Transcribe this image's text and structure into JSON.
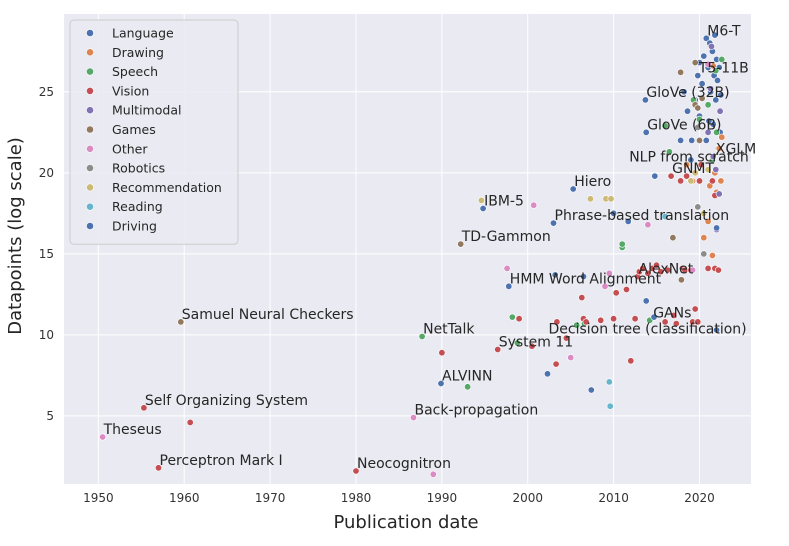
{
  "chart_data": {
    "type": "scatter",
    "xlabel": "Publication date",
    "ylabel": "Datapoints (log scale)",
    "xlim": [
      1946,
      2026
    ],
    "ylim": [
      0.8,
      29.8
    ],
    "x_ticks": [
      1950,
      1960,
      1970,
      1980,
      1990,
      2000,
      2010,
      2020
    ],
    "y_ticks": [
      5,
      10,
      15,
      20,
      25
    ],
    "grid": true,
    "background": "#eaeaf2",
    "legend_position": "top-left",
    "series": [
      {
        "name": "Language",
        "color": "#4c72b0",
        "points": [
          [
            1994.8,
            17.8
          ],
          [
            1997.8,
            13.0
          ],
          [
            2003.0,
            16.9
          ],
          [
            2003.2,
            13.7
          ],
          [
            2005.3,
            19.0
          ],
          [
            2006.5,
            13.6
          ],
          [
            2010.0,
            17.5
          ],
          [
            2011.7,
            17.0
          ],
          [
            2013.7,
            24.5
          ],
          [
            2013.8,
            22.5
          ],
          [
            2014.8,
            19.8
          ],
          [
            2015.8,
            17.3
          ],
          [
            2017.8,
            22.0
          ],
          [
            2018.2,
            25.0
          ],
          [
            2018.6,
            23.8
          ],
          [
            2019.0,
            20.8
          ],
          [
            2019.1,
            22.0
          ],
          [
            2019.5,
            24.5
          ],
          [
            2019.8,
            26.0
          ],
          [
            2020.0,
            23.5
          ],
          [
            2020.3,
            25.5
          ],
          [
            2020.5,
            27.2
          ],
          [
            2020.8,
            28.3
          ],
          [
            2021.0,
            26.5
          ],
          [
            2021.2,
            28.0
          ],
          [
            2021.3,
            25.0
          ],
          [
            2021.5,
            27.5
          ],
          [
            2021.6,
            23.0
          ],
          [
            2021.7,
            26.0
          ],
          [
            2021.8,
            28.5
          ],
          [
            2021.9,
            24.5
          ],
          [
            2022.0,
            27.0
          ],
          [
            2022.1,
            25.7
          ],
          [
            2022.2,
            21.5
          ],
          [
            2022.3,
            26.5
          ],
          [
            2022.4,
            22.5
          ],
          [
            2022.5,
            24.8
          ],
          [
            2020.8,
            22.0
          ],
          [
            2021.1,
            23.2
          ],
          [
            2020.0,
            26.8
          ]
        ]
      },
      {
        "name": "Drawing",
        "color": "#dd8452",
        "points": [
          [
            2018.5,
            20.5
          ],
          [
            2019.2,
            19.5
          ],
          [
            2020.5,
            16.0
          ],
          [
            2021.0,
            17.0
          ],
          [
            2021.2,
            19.2
          ],
          [
            2021.5,
            14.9
          ],
          [
            2021.8,
            20.0
          ],
          [
            2022.0,
            18.8
          ],
          [
            2022.3,
            21.5
          ],
          [
            2022.5,
            19.5
          ],
          [
            2022.6,
            22.2
          ],
          [
            2021.6,
            26.6
          ]
        ]
      },
      {
        "name": "Speech",
        "color": "#55a868",
        "points": [
          [
            1987.7,
            9.9
          ],
          [
            1993.0,
            6.8
          ],
          [
            1998.2,
            11.1
          ],
          [
            1998.8,
            9.5
          ],
          [
            2005.7,
            10.6
          ],
          [
            2006.6,
            10.7
          ],
          [
            2011.0,
            15.4
          ],
          [
            2011.0,
            15.6
          ],
          [
            2014.2,
            10.9
          ],
          [
            2016.0,
            22.9
          ],
          [
            2016.5,
            21.3
          ],
          [
            2019.3,
            24.5
          ],
          [
            2020.0,
            23.3
          ],
          [
            2021.0,
            24.2
          ],
          [
            2021.5,
            20.8
          ],
          [
            2022.0,
            22.5
          ],
          [
            2022.6,
            27.0
          ],
          [
            2021.9,
            26.3
          ]
        ]
      },
      {
        "name": "Vision",
        "color": "#c44e52",
        "points": [
          [
            1955.3,
            5.5
          ],
          [
            1957.0,
            1.8
          ],
          [
            1960.7,
            4.6
          ],
          [
            1980.0,
            1.6
          ],
          [
            1990.0,
            8.9
          ],
          [
            1996.5,
            9.1
          ],
          [
            1999.0,
            11.0
          ],
          [
            2000.5,
            9.3
          ],
          [
            2003.4,
            10.8
          ],
          [
            2003.3,
            8.2
          ],
          [
            2004.5,
            9.8
          ],
          [
            2006.3,
            12.3
          ],
          [
            2006.5,
            11.0
          ],
          [
            2006.8,
            10.8
          ],
          [
            2008.5,
            10.9
          ],
          [
            2010.0,
            11.0
          ],
          [
            2010.3,
            12.6
          ],
          [
            2011.5,
            12.8
          ],
          [
            2012.0,
            8.4
          ],
          [
            2012.5,
            11.0
          ],
          [
            2012.8,
            13.6
          ],
          [
            2013.0,
            13.9
          ],
          [
            2013.4,
            14.1
          ],
          [
            2014.0,
            13.8
          ],
          [
            2014.5,
            14.1
          ],
          [
            2015.0,
            14.3
          ],
          [
            2015.5,
            13.9
          ],
          [
            2016.0,
            10.8
          ],
          [
            2016.3,
            14.0
          ],
          [
            2016.7,
            19.8
          ],
          [
            2017.0,
            11.2
          ],
          [
            2017.3,
            10.7
          ],
          [
            2017.8,
            19.5
          ],
          [
            2018.0,
            14.1
          ],
          [
            2018.3,
            14.0
          ],
          [
            2018.5,
            19.8
          ],
          [
            2019.0,
            14.0
          ],
          [
            2019.2,
            10.8
          ],
          [
            2019.5,
            11.6
          ],
          [
            2019.8,
            10.8
          ],
          [
            2020.0,
            19.5
          ],
          [
            2020.2,
            20.5
          ],
          [
            2021.0,
            14.1
          ],
          [
            2021.5,
            19.5
          ],
          [
            2021.8,
            14.1
          ],
          [
            2022.2,
            14.0
          ],
          [
            2021.8,
            18.6
          ]
        ]
      },
      {
        "name": "Multimodal",
        "color": "#8172b3",
        "points": [
          [
            2021.0,
            22.5
          ],
          [
            2021.3,
            25.2
          ],
          [
            2021.6,
            21.0
          ],
          [
            2022.0,
            16.5
          ],
          [
            2022.3,
            18.7
          ],
          [
            2022.4,
            23.8
          ],
          [
            2021.9,
            20.2
          ],
          [
            2021.4,
            27.8
          ]
        ]
      },
      {
        "name": "Games",
        "color": "#937860",
        "points": [
          [
            1959.6,
            10.8
          ],
          [
            1992.2,
            15.6
          ],
          [
            2016.9,
            16.0
          ],
          [
            2017.9,
            13.4
          ],
          [
            2017.8,
            26.2
          ],
          [
            2019.5,
            24.2
          ],
          [
            2020.0,
            22.0
          ],
          [
            2019.5,
            26.8
          ],
          [
            2020.3,
            24.6
          ],
          [
            2019.8,
            24.0
          ]
        ]
      },
      {
        "name": "Other",
        "color": "#da8bc3",
        "points": [
          [
            1950.5,
            3.7
          ],
          [
            1986.7,
            4.9
          ],
          [
            1989.0,
            1.4
          ],
          [
            1997.6,
            14.1
          ],
          [
            2000.7,
            18.0
          ],
          [
            2005.0,
            8.6
          ],
          [
            2009.0,
            13.0
          ],
          [
            2009.5,
            13.8
          ],
          [
            2014.0,
            16.8
          ],
          [
            2019.2,
            14.0
          ],
          [
            2021.0,
            26.7
          ]
        ]
      },
      {
        "name": "Robotics",
        "color": "#8c8c8c",
        "points": [
          [
            2019.8,
            17.9
          ],
          [
            2020.5,
            15.0
          ],
          [
            2019.8,
            22.8
          ]
        ]
      },
      {
        "name": "Recommendation",
        "color": "#ccb974",
        "points": [
          [
            1994.6,
            18.3
          ],
          [
            2007.3,
            18.4
          ],
          [
            2009.1,
            18.4
          ],
          [
            2009.7,
            18.4
          ],
          [
            2019.0,
            19.5
          ],
          [
            2020.5,
            17.5
          ],
          [
            2021.0,
            20.2
          ],
          [
            2019.5,
            20.0
          ]
        ]
      },
      {
        "name": "Reading",
        "color": "#64b5cd",
        "points": [
          [
            2009.5,
            7.1
          ],
          [
            2009.6,
            5.6
          ],
          [
            2016.0,
            17.3
          ]
        ]
      },
      {
        "name": "Driving",
        "color": "#4c72b0",
        "points": [
          [
            1989.9,
            7.0
          ],
          [
            2002.3,
            7.6
          ],
          [
            2007.4,
            6.6
          ],
          [
            2013.8,
            12.1
          ],
          [
            2014.7,
            11.1
          ],
          [
            2022.0,
            10.3
          ],
          [
            2022.0,
            16.6
          ]
        ]
      }
    ],
    "annotations": [
      {
        "text": "Theseus",
        "x": 1950.5,
        "y": 3.7
      },
      {
        "text": "Self Organizing System",
        "x": 1955.3,
        "y": 5.5
      },
      {
        "text": "Perceptron Mark I",
        "x": 1957.0,
        "y": 1.8
      },
      {
        "text": "Samuel Neural Checkers",
        "x": 1959.6,
        "y": 10.8
      },
      {
        "text": "Neocognitron",
        "x": 1980.0,
        "y": 1.6
      },
      {
        "text": "Back-propagation",
        "x": 1986.7,
        "y": 4.9
      },
      {
        "text": "NetTalk",
        "x": 1987.7,
        "y": 9.9
      },
      {
        "text": "ALVINN",
        "x": 1989.9,
        "y": 7.0
      },
      {
        "text": "TD-Gammon",
        "x": 1992.2,
        "y": 15.6
      },
      {
        "text": "IBM-5",
        "x": 1994.8,
        "y": 17.8
      },
      {
        "text": "System 11",
        "x": 1996.5,
        "y": 9.1
      },
      {
        "text": "HMM Word Alignment",
        "x": 1997.8,
        "y": 13.0
      },
      {
        "text": "Decision tree (classification)",
        "x": 2002.3,
        "y": 9.9
      },
      {
        "text": "Phrase-based translation",
        "x": 2003.0,
        "y": 16.9
      },
      {
        "text": "Hiero",
        "x": 2005.3,
        "y": 19.0
      },
      {
        "text": "AlexNet",
        "x": 2012.8,
        "y": 13.6
      },
      {
        "text": "GANs",
        "x": 2014.5,
        "y": 10.9
      },
      {
        "text": "NLP from scratch",
        "x": 2011.7,
        "y": 20.5
      },
      {
        "text": "GloVe (6B)",
        "x": 2013.8,
        "y": 22.5
      },
      {
        "text": "GloVe (32B)",
        "x": 2013.7,
        "y": 24.5
      },
      {
        "text": "GNMT",
        "x": 2016.7,
        "y": 19.8
      },
      {
        "text": "T5-11B",
        "x": 2019.8,
        "y": 26.0
      },
      {
        "text": "M6-T",
        "x": 2020.8,
        "y": 28.3
      },
      {
        "text": "XGLM",
        "x": 2021.8,
        "y": 21.0
      }
    ]
  }
}
